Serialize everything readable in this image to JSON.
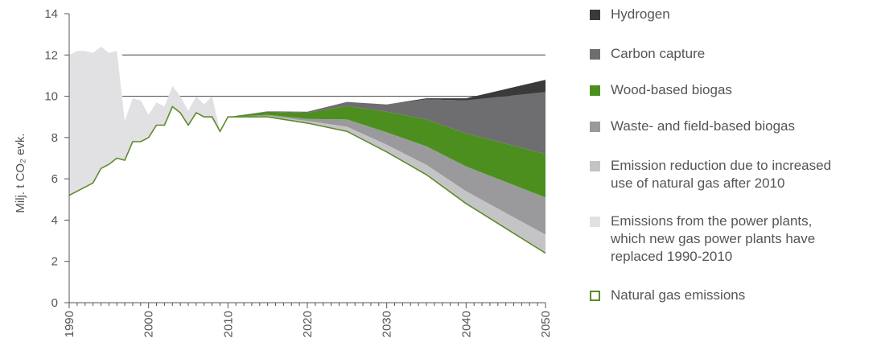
{
  "chart_data": {
    "type": "area",
    "ylabel": "Milj. t CO₂ evk.",
    "xlim": [
      1990,
      2050
    ],
    "ylim": [
      0,
      14
    ],
    "yticks": [
      "0",
      "2",
      "4",
      "6",
      "8",
      "10",
      "12",
      "14"
    ],
    "xticks": [
      "1990",
      "2000",
      "2010",
      "2020",
      "2030",
      "2040",
      "2050"
    ],
    "gridlines_y": [
      10,
      12
    ],
    "legend_position": "right",
    "natural_gas_emissions": {
      "x": [
        1990,
        1992,
        1993,
        1994,
        1995,
        1996,
        1997,
        1998,
        1999,
        2000,
        2001,
        2002,
        2003,
        2004,
        2005,
        2006,
        2007,
        2008,
        2009,
        2010,
        2015,
        2020,
        2025,
        2030,
        2035,
        2040,
        2045,
        2050
      ],
      "y": [
        5.2,
        5.6,
        5.8,
        6.5,
        6.7,
        7.0,
        6.9,
        7.8,
        7.8,
        8.0,
        8.6,
        8.6,
        9.5,
        9.2,
        8.6,
        9.2,
        9.0,
        9.0,
        8.3,
        9.0,
        9.0,
        8.7,
        8.3,
        7.3,
        6.2,
        4.8,
        3.6,
        2.4
      ]
    },
    "power_plants_replaced_top": {
      "x": [
        1990,
        1991,
        1992,
        1993,
        1994,
        1995,
        1996,
        1997,
        1998,
        1999,
        2000,
        2001,
        2002,
        2003,
        2004,
        2005,
        2006,
        2007,
        2008,
        2009,
        2010
      ],
      "y": [
        12.0,
        12.2,
        12.2,
        12.1,
        12.4,
        12.1,
        12.2,
        8.8,
        9.9,
        9.8,
        9.1,
        9.7,
        9.5,
        10.5,
        10.0,
        9.3,
        10.0,
        9.6,
        10.0,
        8.3,
        9.0
      ]
    },
    "series": [
      {
        "name": "Hydrogen",
        "color": "#3a3a3a",
        "x": [
          2010,
          2020,
          2030,
          2040,
          2050
        ],
        "y": [
          0,
          0,
          0,
          0.1,
          0.6
        ]
      },
      {
        "name": "Carbon capture",
        "color": "#6e6e70",
        "x": [
          2010,
          2020,
          2030,
          2040,
          2050
        ],
        "y": [
          0,
          0.05,
          0.35,
          1.6,
          3.0
        ]
      },
      {
        "name": "Wood-based biogas",
        "color": "#4c8f1f",
        "x": [
          2010,
          2020,
          2030,
          2040,
          2050
        ],
        "y": [
          0,
          0.3,
          1.0,
          1.6,
          2.1
        ]
      },
      {
        "name": "Waste- and field-based biogas",
        "color": "#9a9a9c",
        "x": [
          2010,
          2020,
          2030,
          2040,
          2050
        ],
        "y": [
          0,
          0.1,
          0.6,
          1.2,
          1.8
        ]
      },
      {
        "name": "Emission reduction due to increased\nuse of natural gas after 2010",
        "color": "#c4c4c6",
        "x": [
          2010,
          2020,
          2030,
          2040,
          2050
        ],
        "y": [
          0,
          0.1,
          0.35,
          0.6,
          0.9
        ]
      },
      {
        "name": "Emissions from the power plants,\nwhich new gas power plants have\nreplaced 1990-2010",
        "color": "#e1e1e3"
      },
      {
        "name": "Natural gas emissions",
        "color": "#5d8a2a",
        "outline": true
      }
    ]
  }
}
